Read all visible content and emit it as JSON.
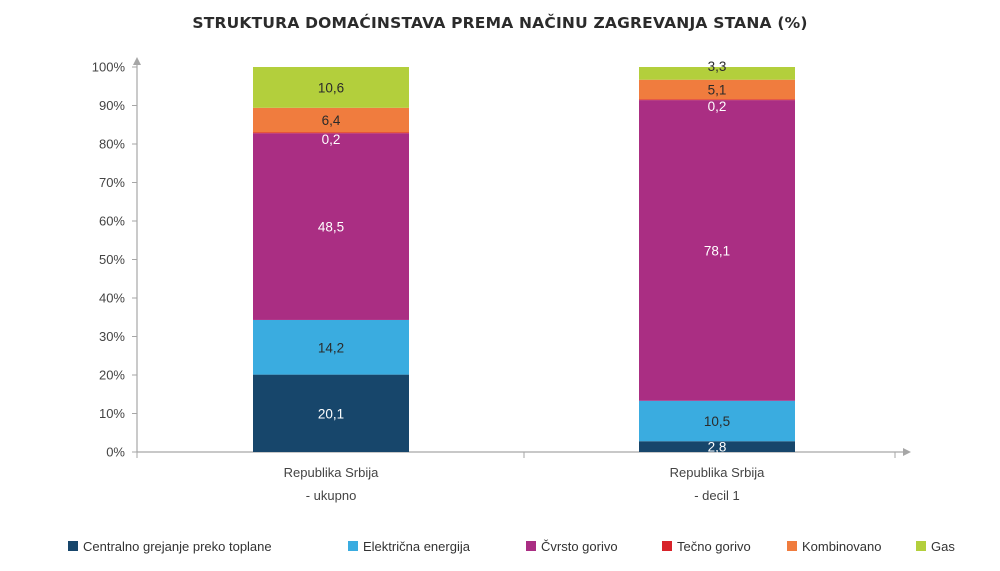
{
  "chart_data": {
    "type": "bar",
    "stacked": true,
    "title": "STRUKTURA DOMAĆINSTAVA PREMA NAČINU ZAGREVANJA STANA (%)",
    "categories": [
      {
        "line1": "Republika Srbija",
        "line2": "- ukupno"
      },
      {
        "line1": "Republika Srbija",
        "line2": "- decil 1"
      }
    ],
    "ylim": [
      0,
      100
    ],
    "yticks": [
      "0%",
      "10%",
      "20%",
      "30%",
      "40%",
      "50%",
      "60%",
      "70%",
      "80%",
      "90%",
      "100%"
    ],
    "series": [
      {
        "name": "Centralno grejanje preko toplane",
        "color": "#17466b",
        "label_color": "#ffffff",
        "values": [
          20.1,
          2.8
        ],
        "labels": [
          "20,1",
          "2,8"
        ]
      },
      {
        "name": "Električna energija",
        "color": "#3aace0",
        "label_color": "#2b2b2b",
        "values": [
          14.2,
          10.5
        ],
        "labels": [
          "14,2",
          "10,5"
        ]
      },
      {
        "name": "Čvrsto gorivo",
        "color": "#aa2e83",
        "label_color": "#ffffff",
        "values": [
          48.5,
          78.1
        ],
        "labels": [
          "48,5",
          "78,1"
        ]
      },
      {
        "name": "Tečno gorivo",
        "color": "#d8232a",
        "label_color": "#ffffff",
        "values": [
          0.2,
          0.2
        ],
        "labels": [
          "0,2",
          "0,2"
        ]
      },
      {
        "name": "Kombinovano",
        "color": "#f07c3e",
        "label_color": "#2b2b2b",
        "values": [
          6.4,
          5.1
        ],
        "labels": [
          "6,4",
          "5,1"
        ]
      },
      {
        "name": "Gas",
        "color": "#b3cf3c",
        "label_color": "#2b2b2b",
        "values": [
          10.6,
          3.3
        ],
        "labels": [
          "10,6",
          "3,3"
        ]
      }
    ],
    "legend_position": "bottom"
  }
}
